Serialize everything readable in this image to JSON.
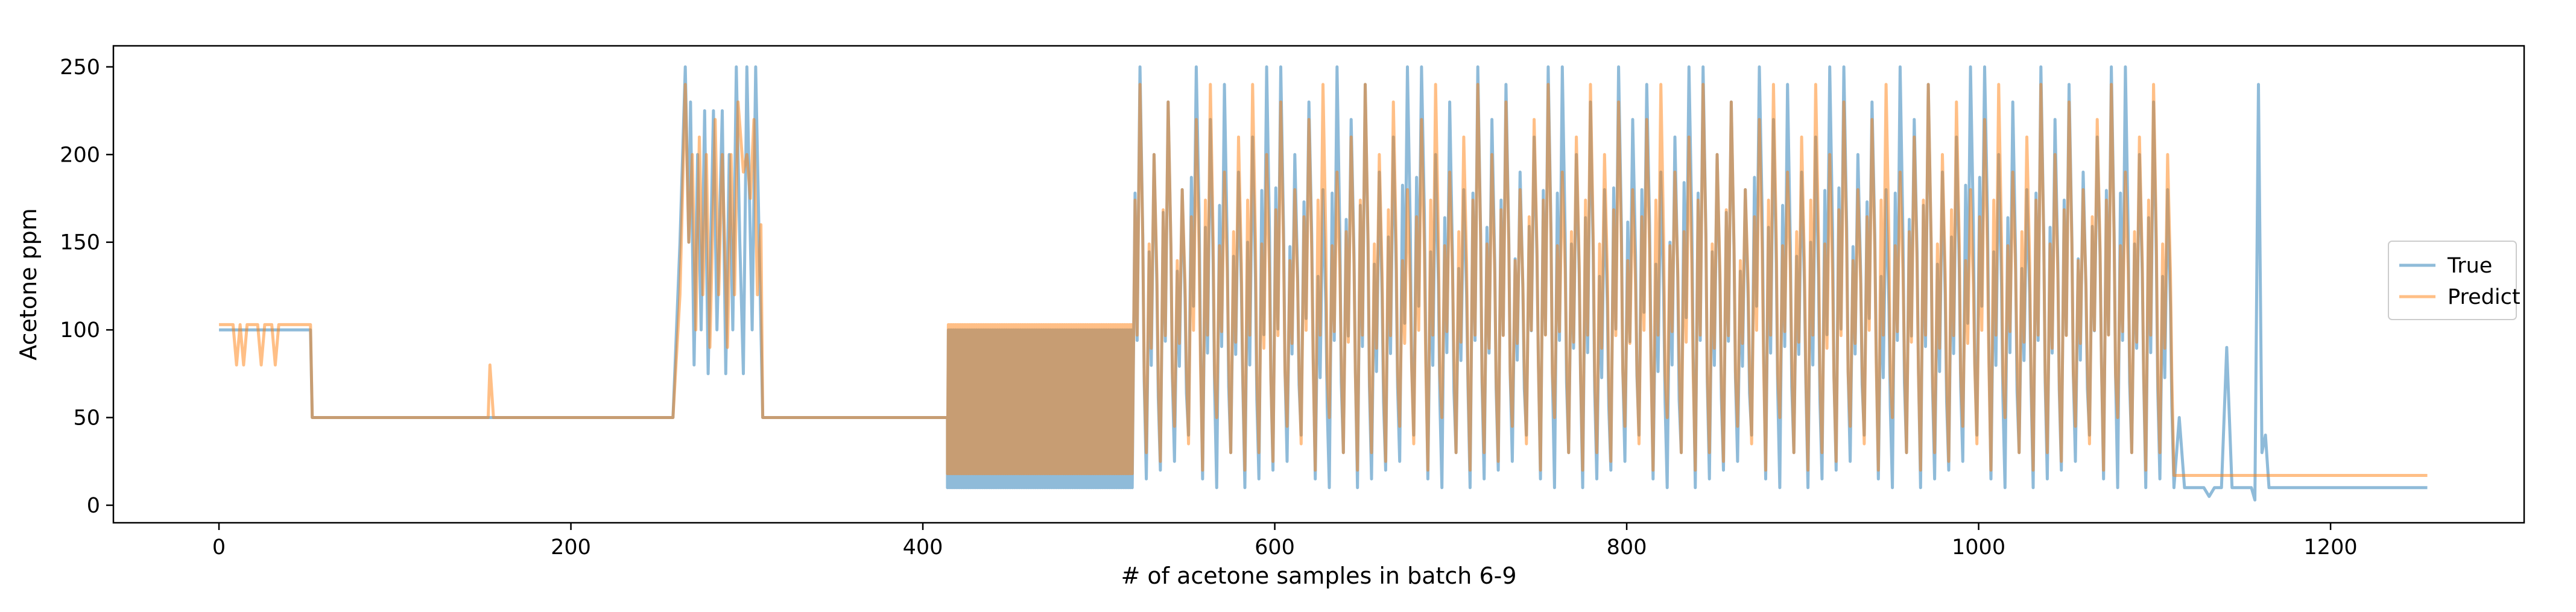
{
  "chart_data": {
    "type": "line",
    "title": "",
    "xlabel": "# of acetone samples in batch 6-9",
    "ylabel": "Acetone ppm",
    "xlim": [
      -60,
      1310
    ],
    "ylim": [
      -10,
      262
    ],
    "xticks": [
      0,
      200,
      400,
      600,
      800,
      1000,
      1200
    ],
    "yticks": [
      0,
      50,
      100,
      150,
      200,
      250
    ],
    "grid": false,
    "legend": "right",
    "series": [
      {
        "name": "True",
        "color": "#1f77b4",
        "opacity": 0.5,
        "segments": [
          {
            "kind": "points",
            "xy": [
              [
                0,
                100
              ],
              [
                52,
                100
              ],
              [
                53,
                50
              ],
              [
                258,
                50
              ],
              [
                262,
                150
              ],
              [
                265,
                250
              ],
              [
                267,
                150
              ],
              [
                268,
                230
              ],
              [
                270,
                80
              ],
              [
                272,
                200
              ],
              [
                274,
                100
              ],
              [
                276,
                225
              ],
              [
                278,
                75
              ],
              [
                281,
                225
              ],
              [
                283,
                100
              ],
              [
                286,
                225
              ],
              [
                288,
                75
              ],
              [
                290,
                200
              ],
              [
                292,
                100
              ],
              [
                294,
                250
              ],
              [
                296,
                150
              ],
              [
                298,
                75
              ],
              [
                300,
                250
              ],
              [
                303,
                100
              ],
              [
                305,
                250
              ],
              [
                307,
                150
              ],
              [
                309,
                50
              ],
              [
                414,
                50
              ]
            ]
          },
          {
            "kind": "band",
            "x0": 414,
            "x1": 519,
            "lo": 10,
            "hi": 100
          },
          {
            "kind": "osc",
            "x0": 519,
            "x1": 1111,
            "period": 8,
            "lows": [
              10,
              15,
              20,
              25,
              40,
              15,
              10,
              30
            ],
            "highs": [
              250,
              200,
              230,
              180,
              250,
              220,
              240,
              190,
              210,
              250
            ]
          },
          {
            "kind": "points",
            "xy": [
              [
                1111,
                10
              ],
              [
                1114,
                50
              ],
              [
                1117,
                10
              ],
              [
                1128,
                10
              ],
              [
                1131,
                5
              ],
              [
                1134,
                10
              ],
              [
                1138,
                10
              ],
              [
                1141,
                90
              ],
              [
                1144,
                10
              ],
              [
                1155,
                10
              ],
              [
                1157,
                3
              ],
              [
                1159,
                240
              ],
              [
                1161,
                30
              ],
              [
                1163,
                40
              ],
              [
                1165,
                10
              ],
              [
                1255,
                10
              ]
            ]
          }
        ]
      },
      {
        "name": "Predict",
        "color": "#ff7f0e",
        "opacity": 0.5,
        "segments": [
          {
            "kind": "points",
            "xy": [
              [
                0,
                103
              ],
              [
                8,
                103
              ],
              [
                10,
                80
              ],
              [
                12,
                103
              ],
              [
                14,
                80
              ],
              [
                16,
                103
              ],
              [
                22,
                103
              ],
              [
                24,
                80
              ],
              [
                26,
                103
              ],
              [
                30,
                103
              ],
              [
                32,
                80
              ],
              [
                34,
                103
              ],
              [
                52,
                103
              ],
              [
                53,
                50
              ],
              [
                153,
                50
              ],
              [
                154,
                80
              ],
              [
                156,
                50
              ],
              [
                258,
                50
              ],
              [
                262,
                120
              ],
              [
                265,
                240
              ],
              [
                267,
                150
              ],
              [
                269,
                200
              ],
              [
                271,
                100
              ],
              [
                273,
                210
              ],
              [
                275,
                120
              ],
              [
                277,
                200
              ],
              [
                279,
                90
              ],
              [
                282,
                220
              ],
              [
                284,
                120
              ],
              [
                286,
                200
              ],
              [
                289,
                90
              ],
              [
                291,
                200
              ],
              [
                293,
                120
              ],
              [
                295,
                230
              ],
              [
                298,
                190
              ],
              [
                300,
                200
              ],
              [
                302,
                175
              ],
              [
                304,
                220
              ],
              [
                306,
                120
              ],
              [
                308,
                160
              ],
              [
                309,
                50
              ],
              [
                414,
                50
              ]
            ]
          },
          {
            "kind": "band",
            "x0": 414,
            "x1": 519,
            "lo": 18,
            "hi": 103
          },
          {
            "kind": "osc",
            "x0": 519,
            "x1": 1111,
            "period": 8,
            "lows": [
              20,
              30,
              25,
              45,
              35,
              20,
              50,
              30
            ],
            "highs": [
              240,
              200,
              230,
              180,
              220,
              240,
              190,
              210
            ]
          },
          {
            "kind": "points",
            "xy": [
              [
                1111,
                17
              ],
              [
                1255,
                17
              ]
            ]
          }
        ]
      }
    ]
  }
}
